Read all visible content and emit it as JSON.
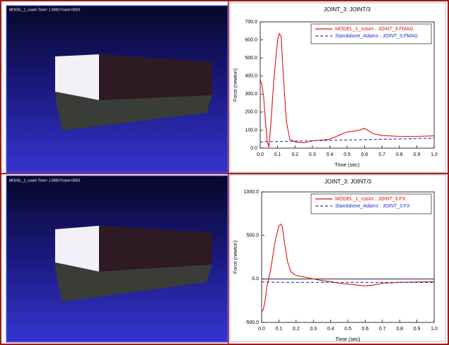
{
  "viewports": [
    {
      "caption": "MODEL_1_cosim  Time= 1.0000  Frame=5001"
    },
    {
      "caption": "MODEL_1_cosim  Time= 1.0000  Frame=5001"
    }
  ],
  "chart_data": [
    {
      "type": "line",
      "title": "JOINT_3: JOINT/3",
      "x_label": "Time (sec)",
      "y_label": "Force (newton)",
      "x": [
        0,
        0.01,
        0.02,
        0.03,
        0.04,
        0.05,
        0.06,
        0.08,
        0.1,
        0.11,
        0.12,
        0.13,
        0.15,
        0.17,
        0.2,
        0.25,
        0.3,
        0.35,
        0.4,
        0.45,
        0.5,
        0.55,
        0.6,
        0.65,
        0.7,
        0.8,
        0.9,
        1.0
      ],
      "xlim": [
        0,
        1
      ],
      "xticks": [
        {
          "value": 0,
          "label": "0.0"
        },
        0.1,
        0.2,
        0.3,
        0.4,
        0.5,
        0.6,
        0.7,
        0.8,
        0.9,
        {
          "value": 1,
          "label": "1.0"
        }
      ],
      "ylim": [
        0,
        700
      ],
      "yticks": [
        {
          "value": 0,
          "label": "0.0"
        },
        {
          "value": 100,
          "label": "100.0"
        },
        {
          "value": 200,
          "label": "200.0"
        },
        {
          "value": 300,
          "label": "300.0"
        },
        {
          "value": 400,
          "label": "400.0"
        },
        {
          "value": 500,
          "label": "500.0"
        },
        {
          "value": 600,
          "label": "600.0"
        },
        {
          "value": 700,
          "label": "700.0"
        }
      ],
      "legend": "upper right",
      "zero_line": false,
      "series": [
        {
          "name": "MODEL_1_cosim : JOINT_3.FMAG",
          "color": "#e01010",
          "line_style": "solid",
          "values": [
            380,
            350,
            280,
            150,
            40,
            5,
            120,
            400,
            600,
            635,
            620,
            450,
            150,
            50,
            35,
            30,
            40,
            45,
            50,
            70,
            90,
            95,
            110,
            80,
            70,
            65,
            65,
            68
          ]
        },
        {
          "name": "Standalone_Adams : JOINT_3.FMAG",
          "color": "#2030d0",
          "line_style": "dashed",
          "values": [
            35,
            35,
            35,
            36,
            36,
            36,
            36,
            37,
            37,
            37,
            37,
            38,
            38,
            38,
            39,
            40,
            41,
            42,
            43,
            44,
            45,
            46,
            47,
            48,
            49,
            51,
            53,
            55
          ]
        }
      ]
    },
    {
      "type": "line",
      "title": "JOINT_3: JOINT/3",
      "x_label": "Time (sec)",
      "y_label": "Force (newton)",
      "x": [
        0,
        0.01,
        0.02,
        0.03,
        0.04,
        0.05,
        0.06,
        0.08,
        0.1,
        0.11,
        0.12,
        0.13,
        0.15,
        0.17,
        0.2,
        0.25,
        0.3,
        0.35,
        0.4,
        0.45,
        0.5,
        0.55,
        0.6,
        0.65,
        0.7,
        0.8,
        0.9,
        1.0
      ],
      "xlim": [
        0,
        1
      ],
      "xticks": [
        {
          "value": 0,
          "label": "0.0"
        },
        0.1,
        0.2,
        0.3,
        0.4,
        0.5,
        0.6,
        0.7,
        0.8,
        0.9,
        {
          "value": 1,
          "label": "1.0"
        }
      ],
      "ylim": [
        -500,
        1000
      ],
      "yticks": [
        {
          "value": -500,
          "label": "-500.0"
        },
        {
          "value": 0,
          "label": "0.0"
        },
        {
          "value": 500,
          "label": "500.0"
        },
        {
          "value": 1000,
          "label": "1000.0"
        }
      ],
      "legend": "upper right",
      "zero_line": true,
      "series": [
        {
          "name": "MODEL_1_cosim : JOINT_3.FX",
          "color": "#e01010",
          "line_style": "solid",
          "values": [
            -380,
            -350,
            -250,
            -100,
            0,
            80,
            200,
            450,
            610,
            630,
            600,
            450,
            200,
            80,
            40,
            20,
            0,
            -20,
            -30,
            -50,
            -60,
            -70,
            -80,
            -70,
            -50,
            -40,
            -35,
            -30
          ]
        },
        {
          "name": "Standalone_Adams : JOINT_3.FX",
          "color": "#2030d0",
          "line_style": "dashed",
          "values": [
            -30,
            -32,
            -34,
            -35,
            -36,
            -37,
            -38,
            -38,
            -39,
            -39,
            -39,
            -40,
            -40,
            -40,
            -40,
            -40,
            -40,
            -40,
            -40,
            -40,
            -40,
            -40,
            -40,
            -40,
            -40,
            -40,
            -40,
            -40
          ]
        }
      ]
    }
  ]
}
